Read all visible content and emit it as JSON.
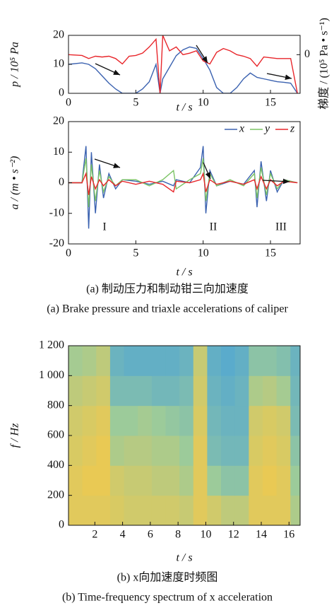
{
  "chart_data": [
    {
      "type": "line",
      "xlabel": "t / s",
      "ylabel": "p / 10⁵ Pa",
      "y2label": "梯度 / (10⁵ Pa • s⁻¹)",
      "xlim": [
        0,
        17.2
      ],
      "ylim": [
        0,
        20
      ],
      "y2lim": [
        -50,
        25
      ],
      "xticks": [
        0,
        5,
        10,
        15
      ],
      "yticks": [
        0,
        10,
        20
      ],
      "y2ticks": [
        0
      ],
      "x": [
        0,
        1,
        1.5,
        2,
        2.5,
        3,
        3.5,
        4,
        4.5,
        5,
        5.5,
        6,
        6.5,
        6.8,
        7,
        7.5,
        8,
        8.5,
        9,
        9.5,
        10,
        10.5,
        11,
        11.5,
        12,
        12.5,
        13,
        13.5,
        14,
        14.5,
        15,
        15.5,
        16,
        16.5,
        17
      ],
      "series": [
        {
          "color": "#3b62b0",
          "values": [
            10,
            10.5,
            10,
            8.5,
            6,
            3.5,
            1.5,
            0,
            0,
            0,
            1.5,
            4,
            10,
            0,
            5,
            9,
            13,
            15,
            16,
            15.5,
            12,
            8,
            2,
            0,
            0,
            2,
            5,
            7,
            5.5,
            5,
            4.5,
            4,
            3.8,
            3.5,
            0
          ]
        },
        {
          "color": "#e8262b",
          "axis": "y2",
          "values": [
            0,
            -1,
            -5,
            -2,
            -3,
            -2,
            -5,
            -12,
            -2,
            -1,
            2,
            10,
            20,
            -50,
            25,
            5,
            10,
            0,
            2,
            5,
            -8,
            -12,
            3,
            8,
            5,
            0,
            -2,
            -5,
            -15,
            -3,
            -4,
            -5,
            -5,
            -5,
            -50
          ]
        }
      ]
    },
    {
      "type": "line",
      "xlabel": "t / s",
      "ylabel": "a / (m • s⁻²)",
      "legend": "upper right",
      "xlim": [
        0,
        17.2
      ],
      "ylim": [
        -20,
        20
      ],
      "xticks": [
        0,
        5,
        10,
        15
      ],
      "yticks": [
        -20,
        -10,
        0,
        10,
        20
      ],
      "annotations": [
        "I",
        "II",
        "III"
      ],
      "x": [
        0,
        1,
        1.3,
        1.5,
        1.7,
        2,
        2.3,
        2.6,
        3,
        3.5,
        4,
        5,
        6,
        7,
        7.8,
        8,
        9,
        9.8,
        10,
        10.2,
        10.5,
        11,
        12,
        13,
        13.8,
        14,
        14.3,
        14.7,
        15,
        15.5,
        16,
        17
      ],
      "series": [
        {
          "name": "x",
          "color": "#3b62b0",
          "values": [
            0,
            0,
            12,
            -15,
            10,
            -10,
            6,
            -5,
            3,
            -2,
            1,
            0.5,
            -0.5,
            0.5,
            -1,
            1,
            0,
            5,
            12,
            -10,
            4,
            -1,
            0.5,
            -0.5,
            4,
            -8,
            7,
            -6,
            4,
            -3,
            1,
            0
          ]
        },
        {
          "name": "y",
          "color": "#7cc465",
          "values": [
            0,
            0,
            8,
            -8,
            6,
            -6,
            4,
            -3,
            2,
            -1,
            1,
            1,
            -1,
            1,
            4,
            -2,
            1,
            3,
            8,
            -6,
            3,
            -1,
            1,
            -1,
            3,
            -5,
            5,
            -4,
            3,
            -2,
            1,
            0
          ]
        },
        {
          "name": "z",
          "color": "#e8262b",
          "values": [
            0,
            0,
            3,
            -4,
            2,
            -2,
            1,
            -1,
            1,
            -1,
            0.5,
            -0.5,
            0.5,
            -0.5,
            -3,
            0.5,
            0,
            1,
            3,
            -3,
            1,
            -0.5,
            0.5,
            -0.5,
            1,
            -2,
            2,
            -2,
            1,
            -1,
            0.5,
            0
          ]
        }
      ]
    },
    {
      "type": "heatmap",
      "xlabel": "t / s",
      "ylabel": "f / Hz",
      "xlim": [
        0.1,
        16.8
      ],
      "ylim": [
        0,
        1200
      ],
      "xticks": [
        2,
        4,
        6,
        8,
        10,
        12,
        14,
        16
      ],
      "yticks": [
        0,
        200,
        400,
        600,
        800,
        {
          "value": 1000,
          "label": "1 000"
        },
        {
          "value": 1200,
          "label": "1 200"
        }
      ],
      "colormap": [
        "#4aa3d8",
        "#9ccb9a",
        "#f2c94c"
      ],
      "x_edges": [
        0.1,
        1.1,
        2.1,
        3.1,
        4.1,
        5.1,
        6.1,
        7.1,
        8.1,
        9.1,
        10.1,
        11.1,
        12.1,
        13.1,
        14.1,
        15.1,
        16.1,
        16.8
      ],
      "y_edges": [
        0,
        200,
        400,
        600,
        800,
        1000,
        1200
      ],
      "z": [
        [
          0.9,
          0.9,
          0.9,
          0.85,
          0.8,
          0.8,
          0.8,
          0.8,
          0.75,
          0.9,
          0.8,
          0.7,
          0.7,
          0.9,
          0.9,
          0.9,
          0.6
        ],
        [
          0.9,
          0.95,
          0.95,
          0.8,
          0.75,
          0.75,
          0.7,
          0.7,
          0.6,
          0.9,
          0.5,
          0.4,
          0.4,
          0.9,
          0.95,
          0.9,
          0.5
        ],
        [
          0.85,
          0.9,
          0.95,
          0.6,
          0.65,
          0.65,
          0.6,
          0.6,
          0.5,
          0.9,
          0.3,
          0.25,
          0.25,
          0.85,
          0.9,
          0.85,
          0.4
        ],
        [
          0.8,
          0.85,
          0.9,
          0.5,
          0.5,
          0.55,
          0.5,
          0.45,
          0.4,
          0.85,
          0.25,
          0.2,
          0.2,
          0.8,
          0.85,
          0.8,
          0.3
        ],
        [
          0.7,
          0.75,
          0.8,
          0.3,
          0.3,
          0.3,
          0.25,
          0.25,
          0.3,
          0.8,
          0.2,
          0.15,
          0.2,
          0.6,
          0.65,
          0.55,
          0.25
        ],
        [
          0.55,
          0.6,
          0.7,
          0.2,
          0.15,
          0.15,
          0.15,
          0.15,
          0.2,
          0.75,
          0.15,
          0.1,
          0.15,
          0.4,
          0.4,
          0.35,
          0.2
        ]
      ]
    }
  ],
  "captions": {
    "a_zh": "(a)  制动压力和制动钳三向加速度",
    "a_en": "(a)  Brake pressure and triaxle accelerations of caliper",
    "b_zh": "(b)  x向加速度时频图",
    "b_en": "(b)  Time-frequency spectrum of x acceleration"
  }
}
